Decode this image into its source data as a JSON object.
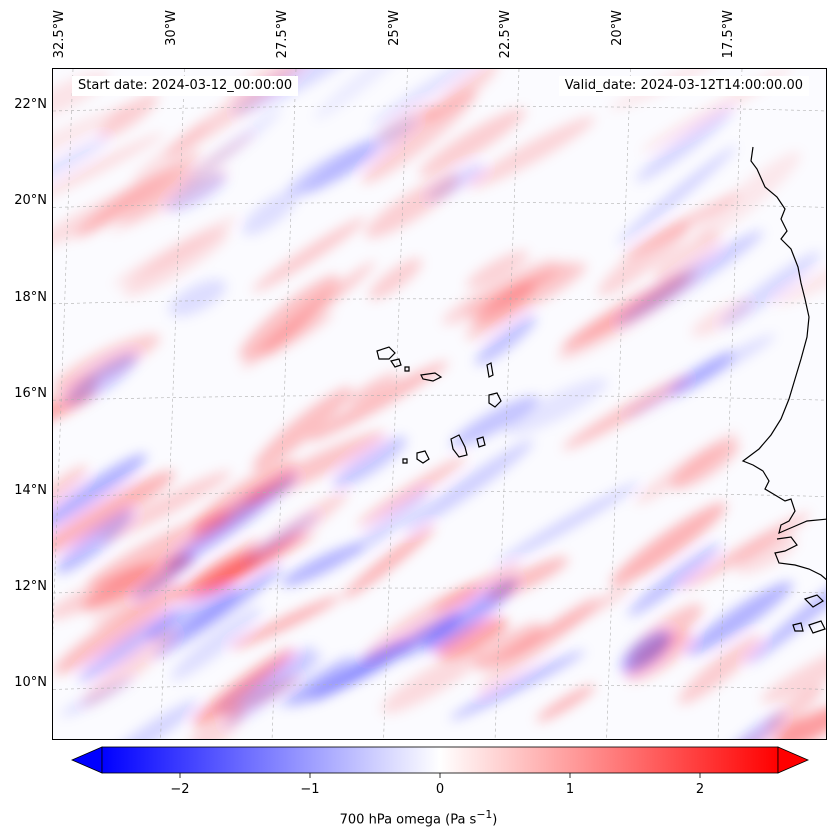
{
  "map": {
    "header_start": "Start date: 2024-03-12_00:00:00",
    "header_valid": "Valid_date: 2024-03-12T14:00:00.00",
    "lat_labels": [
      "22°N",
      "20°N",
      "18°N",
      "16°N",
      "14°N",
      "12°N",
      "10°N"
    ],
    "lon_labels": [
      "32.5°W",
      "30°W",
      "27.5°W",
      "25°W",
      "22.5°W",
      "20°W",
      "17.5°W"
    ],
    "lat_values": [
      22,
      20,
      18,
      16,
      14,
      12,
      10
    ],
    "lon_values": [
      -32.5,
      -30,
      -27.5,
      -25,
      -22.5,
      -20,
      -17.5
    ],
    "colors": {
      "negative": "#0000ff",
      "zero": "#ffffff",
      "positive": "#ff0000",
      "coast": "#000000",
      "grid": "#b0b0b0"
    }
  },
  "colorbar": {
    "label": "700 hPa omega (Pa s",
    "label_sup": "−1",
    "label_end": ")",
    "ticks": [
      "−2",
      "−1",
      "0",
      "1",
      "2"
    ],
    "tick_values": [
      -2,
      -1,
      0,
      1,
      2
    ],
    "vmin": -2.6,
    "vmax": 2.6
  }
}
